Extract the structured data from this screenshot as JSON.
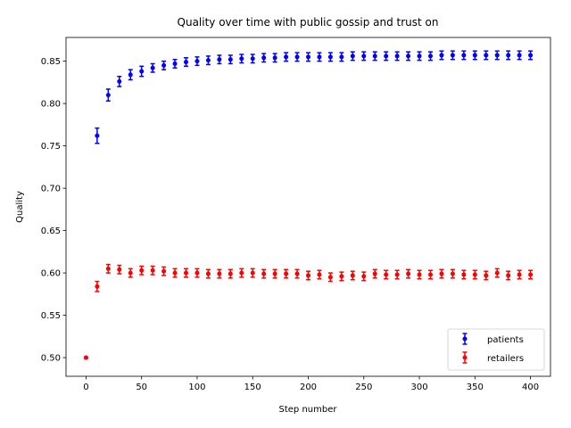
{
  "chart_data": {
    "type": "scatter",
    "title": "Quality over time with public gossip and trust on",
    "xlabel": "Step number",
    "ylabel": "Quality",
    "xlim": [
      -18,
      418
    ],
    "ylim": [
      0.478,
      0.878
    ],
    "xticks": [
      0,
      50,
      100,
      150,
      200,
      250,
      300,
      350,
      400
    ],
    "yticks": [
      0.5,
      0.55,
      0.6,
      0.65,
      0.7,
      0.75,
      0.8,
      0.85
    ],
    "ytick_labels": [
      "0.50",
      "0.55",
      "0.60",
      "0.65",
      "0.70",
      "0.75",
      "0.80",
      "0.85"
    ],
    "grid": false,
    "legend_position": "lower-right",
    "x": [
      0,
      10,
      20,
      30,
      40,
      50,
      60,
      70,
      80,
      90,
      100,
      110,
      120,
      130,
      140,
      150,
      160,
      170,
      180,
      190,
      200,
      210,
      220,
      230,
      240,
      250,
      260,
      270,
      280,
      290,
      300,
      310,
      320,
      330,
      340,
      350,
      360,
      370,
      380,
      390,
      400
    ],
    "series": [
      {
        "name": "patients",
        "color": "#0000ff",
        "values": [
          0.5,
          0.762,
          0.81,
          0.826,
          0.834,
          0.838,
          0.842,
          0.845,
          0.847,
          0.849,
          0.85,
          0.851,
          0.852,
          0.852,
          0.853,
          0.853,
          0.854,
          0.854,
          0.855,
          0.855,
          0.855,
          0.855,
          0.855,
          0.855,
          0.856,
          0.856,
          0.856,
          0.856,
          0.856,
          0.856,
          0.856,
          0.856,
          0.857,
          0.857,
          0.857,
          0.857,
          0.857,
          0.857,
          0.857,
          0.857,
          0.857
        ],
        "errors": [
          0.0,
          0.009,
          0.007,
          0.006,
          0.006,
          0.006,
          0.005,
          0.005,
          0.005,
          0.005,
          0.005,
          0.005,
          0.005,
          0.005,
          0.005,
          0.005,
          0.005,
          0.005,
          0.005,
          0.005,
          0.005,
          0.005,
          0.005,
          0.005,
          0.005,
          0.005,
          0.005,
          0.005,
          0.005,
          0.005,
          0.005,
          0.005,
          0.005,
          0.005,
          0.005,
          0.005,
          0.005,
          0.005,
          0.005,
          0.005,
          0.005
        ]
      },
      {
        "name": "retailers",
        "color": "#ff0000",
        "values": [
          0.5,
          0.584,
          0.605,
          0.604,
          0.6,
          0.603,
          0.603,
          0.602,
          0.6,
          0.6,
          0.6,
          0.599,
          0.599,
          0.599,
          0.6,
          0.6,
          0.599,
          0.599,
          0.599,
          0.599,
          0.597,
          0.598,
          0.595,
          0.596,
          0.597,
          0.596,
          0.599,
          0.598,
          0.598,
          0.599,
          0.598,
          0.598,
          0.599,
          0.599,
          0.598,
          0.598,
          0.597,
          0.6,
          0.597,
          0.598,
          0.598
        ],
        "errors": [
          0.0,
          0.006,
          0.005,
          0.005,
          0.005,
          0.005,
          0.005,
          0.005,
          0.005,
          0.005,
          0.005,
          0.005,
          0.005,
          0.005,
          0.005,
          0.005,
          0.005,
          0.005,
          0.005,
          0.005,
          0.005,
          0.005,
          0.005,
          0.005,
          0.005,
          0.005,
          0.005,
          0.005,
          0.005,
          0.005,
          0.005,
          0.005,
          0.005,
          0.005,
          0.005,
          0.005,
          0.005,
          0.005,
          0.005,
          0.005,
          0.005
        ]
      }
    ]
  }
}
